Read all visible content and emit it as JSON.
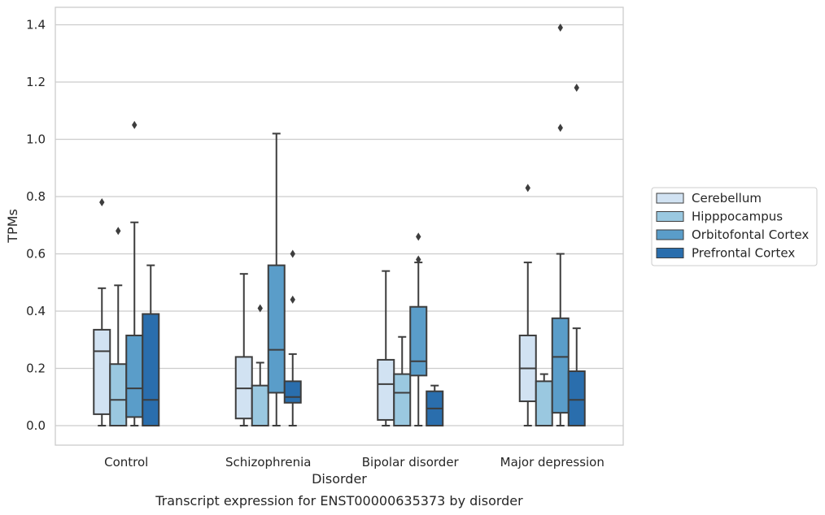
{
  "chart_data": {
    "type": "box",
    "xlabel": "Disorder",
    "ylabel": "TPMs",
    "caption": "Transcript expression for ENST00000635373 by disorder",
    "ylim": [
      -0.065,
      1.46
    ],
    "yticks": [
      0.0,
      0.2,
      0.4,
      0.6,
      0.8,
      1.0,
      1.2,
      1.4
    ],
    "ytick_labels": [
      "0.0",
      "0.2",
      "0.4",
      "0.6",
      "0.8",
      "1.0",
      "1.2",
      "1.4"
    ],
    "grid": "horizontal",
    "legend_position": "right",
    "categories": [
      "Control",
      "Schizophrenia",
      "Bipolar disorder",
      "Major depression"
    ],
    "series": [
      {
        "name": "Cerebellum",
        "color": "#d1e2f2",
        "boxes": [
          {
            "whislo": 0.0,
            "q1": 0.04,
            "med": 0.26,
            "q3": 0.335,
            "whishi": 0.48,
            "fliers": [
              0.78
            ]
          },
          {
            "whislo": 0.0,
            "q1": 0.025,
            "med": 0.13,
            "q3": 0.24,
            "whishi": 0.53,
            "fliers": []
          },
          {
            "whislo": 0.0,
            "q1": 0.02,
            "med": 0.145,
            "q3": 0.23,
            "whishi": 0.54,
            "fliers": []
          },
          {
            "whislo": 0.0,
            "q1": 0.085,
            "med": 0.2,
            "q3": 0.315,
            "whishi": 0.57,
            "fliers": [
              0.83
            ]
          }
        ]
      },
      {
        "name": "Hipppocampus",
        "color": "#9ac8e0",
        "boxes": [
          {
            "whislo": 0.0,
            "q1": 0.0,
            "med": 0.09,
            "q3": 0.215,
            "whishi": 0.49,
            "fliers": [
              0.68
            ]
          },
          {
            "whislo": 0.0,
            "q1": 0.0,
            "med": 0.0,
            "q3": 0.14,
            "whishi": 0.22,
            "fliers": [
              0.41
            ]
          },
          {
            "whislo": 0.0,
            "q1": 0.0,
            "med": 0.115,
            "q3": 0.18,
            "whishi": 0.31,
            "fliers": []
          },
          {
            "whislo": 0.0,
            "q1": 0.0,
            "med": 0.0,
            "q3": 0.155,
            "whishi": 0.18,
            "fliers": []
          }
        ]
      },
      {
        "name": "Orbitofontal Cortex",
        "color": "#5a9dc9",
        "boxes": [
          {
            "whislo": 0.0,
            "q1": 0.03,
            "med": 0.13,
            "q3": 0.315,
            "whishi": 0.71,
            "fliers": [
              1.05
            ]
          },
          {
            "whislo": 0.0,
            "q1": 0.115,
            "med": 0.265,
            "q3": 0.56,
            "whishi": 1.02,
            "fliers": []
          },
          {
            "whislo": 0.0,
            "q1": 0.175,
            "med": 0.225,
            "q3": 0.415,
            "whishi": 0.57,
            "fliers": [
              0.66,
              0.58
            ]
          },
          {
            "whislo": 0.0,
            "q1": 0.045,
            "med": 0.24,
            "q3": 0.375,
            "whishi": 0.6,
            "fliers": [
              1.39,
              1.04
            ]
          }
        ]
      },
      {
        "name": "Prefrontal Cortex",
        "color": "#2a6ead",
        "boxes": [
          {
            "whislo": 0.0,
            "q1": 0.0,
            "med": 0.09,
            "q3": 0.39,
            "whishi": 0.56,
            "fliers": []
          },
          {
            "whislo": 0.0,
            "q1": 0.08,
            "med": 0.1,
            "q3": 0.155,
            "whishi": 0.25,
            "fliers": [
              0.6,
              0.44
            ]
          },
          {
            "whislo": 0.0,
            "q1": 0.0,
            "med": 0.06,
            "q3": 0.12,
            "whishi": 0.14,
            "fliers": []
          },
          {
            "whislo": 0.0,
            "q1": 0.0,
            "med": 0.09,
            "q3": 0.19,
            "whishi": 0.34,
            "fliers": [
              1.18
            ]
          }
        ]
      }
    ]
  }
}
